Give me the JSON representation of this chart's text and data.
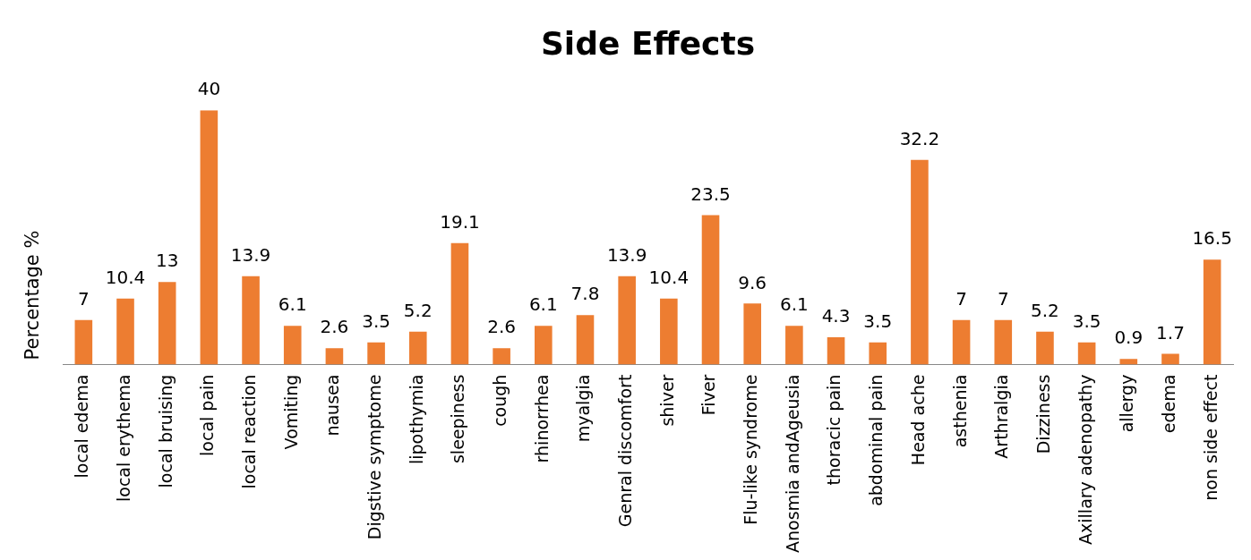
{
  "chart_data": {
    "type": "bar",
    "title": "Side Effects",
    "ylabel": "Percentage %",
    "categories": [
      "local edema",
      "local erythema",
      "local bruising",
      "local pain",
      "local reaction",
      "Vomiting",
      "nausea",
      "Digstive symptome",
      "lipothymia",
      "sleepiness",
      "cough",
      "rhinorrhea",
      "myalgia",
      "Genral discomfort",
      "shiver",
      "Fiver",
      "Flu-like syndrome",
      "Anosmia andAgeusia",
      "thoracic pain",
      "abdominal pain",
      "Head ache",
      "asthenia",
      "Arthralgia",
      "Dizziness",
      "Axillary adenopathy",
      "allergy",
      "edema",
      "non side effect"
    ],
    "values": [
      7,
      10.4,
      13,
      40,
      13.9,
      6.1,
      2.6,
      3.5,
      5.2,
      19.1,
      2.6,
      6.1,
      7.8,
      13.9,
      10.4,
      23.5,
      9.6,
      6.1,
      4.3,
      3.5,
      32.2,
      7,
      7,
      5.2,
      3.5,
      0.9,
      1.7,
      16.5
    ],
    "color": "#ed7d31",
    "data_labels": true,
    "grid": false,
    "legend": false,
    "tick_labels": "x"
  }
}
